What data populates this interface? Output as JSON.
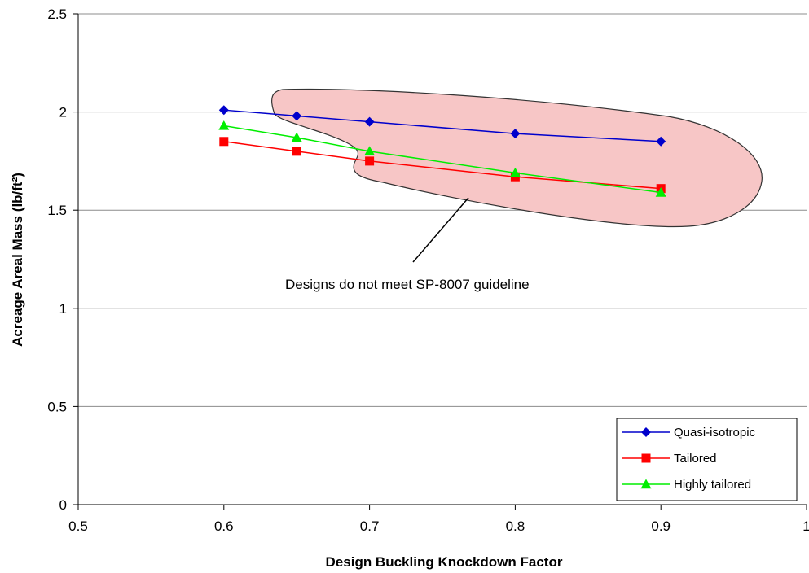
{
  "chart_data": {
    "type": "line",
    "title": "",
    "xlabel": "Design Buckling Knockdown Factor",
    "ylabel": "Acreage Areal Mass (lb/ft²)",
    "xlim": [
      0.5,
      1
    ],
    "ylim": [
      0,
      2.5
    ],
    "xticks": [
      0.5,
      0.6,
      0.7,
      0.8,
      0.9,
      1
    ],
    "xtick_labels": [
      "0.5",
      "0.6",
      "0.7",
      "0.8",
      "0.9",
      "1"
    ],
    "yticks": [
      0,
      0.5,
      1,
      1.5,
      2,
      2.5
    ],
    "ytick_labels": [
      "0",
      "0.5",
      "1",
      "1.5",
      "2",
      "2.5"
    ],
    "grid": "horizontal",
    "legend_position": "bottom-right",
    "series": [
      {
        "name": "Quasi-isotropic",
        "color": "#0000CC",
        "marker": "diamond",
        "x": [
          0.6,
          0.65,
          0.7,
          0.8,
          0.9
        ],
        "y": [
          2.01,
          1.98,
          1.95,
          1.89,
          1.85
        ]
      },
      {
        "name": "Tailored",
        "color": "#FF0000",
        "marker": "square",
        "x": [
          0.6,
          0.65,
          0.7,
          0.8,
          0.9
        ],
        "y": [
          1.85,
          1.8,
          1.75,
          1.67,
          1.61
        ]
      },
      {
        "name": "Highly tailored",
        "color": "#00EE00",
        "marker": "triangle",
        "x": [
          0.6,
          0.65,
          0.7,
          0.8,
          0.9
        ],
        "y": [
          1.93,
          1.87,
          1.8,
          1.69,
          1.59
        ]
      }
    ],
    "annotations": [
      {
        "text": "Designs do not meet SP-8007 guideline",
        "region_color": "#F7C6C6"
      }
    ]
  }
}
